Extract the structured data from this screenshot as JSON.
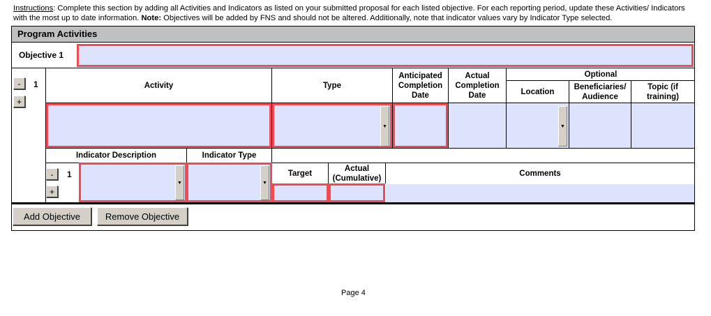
{
  "instructions": {
    "label": "Instructions",
    "text1": ": Complete this section by adding all Activities and Indicators as listed on your submitted proposal for each listed objective. For each reporting period, update these Activities/ Indicators with the most up to date information. ",
    "note_label": "Note:",
    "text2": " Objectives will be added by FNS and should not be altered. Additionally, note that indicator values vary by Indicator Type selected."
  },
  "section_title": "Program Activities",
  "objective": {
    "label": "Objective 1",
    "value": ""
  },
  "activity": {
    "number": "1",
    "minus": "-",
    "plus": "+",
    "headers": {
      "activity": "Activity",
      "type": "Type",
      "anticipated": "Anticipated Completion Date",
      "actual": "Actual Completion Date",
      "optional": "Optional",
      "location": "Location",
      "beneficiaries": "Beneficiaries/ Audience",
      "topic": "Topic (if training)"
    }
  },
  "indicator": {
    "number": "1",
    "minus": "-",
    "plus": "+",
    "headers": {
      "description": "Indicator Description",
      "type": "Indicator Type",
      "target": "Target",
      "actual": "Actual (Cumulative)",
      "comments": "Comments"
    }
  },
  "buttons": {
    "add_objective": "Add Objective",
    "remove_objective": "Remove Objective"
  },
  "footer": {
    "page": "Page 4"
  },
  "colors": {
    "field_fill": "#dde3fd",
    "required_border": "#f04a55",
    "header_bar": "#c0c0c0"
  }
}
